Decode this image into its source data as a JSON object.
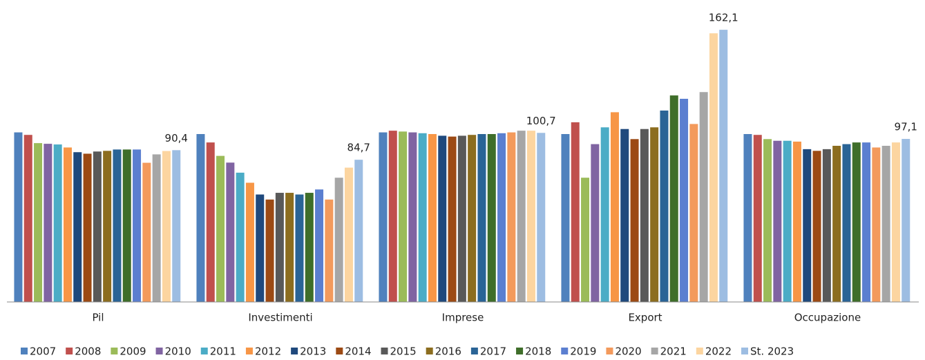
{
  "chart_data": {
    "type": "bar",
    "categories": [
      "Pil",
      "Investimenti",
      "Imprese",
      "Export",
      "Occupazione"
    ],
    "series": [
      {
        "name": "2007",
        "color": "#4f81bd",
        "values": [
          101,
          100,
          101,
          100,
          100
        ]
      },
      {
        "name": "2008",
        "color": "#c0504d",
        "values": [
          99.5,
          95,
          102,
          107,
          99.5
        ]
      },
      {
        "name": "2009",
        "color": "#9bbb59",
        "values": [
          94.6,
          87,
          101.5,
          74,
          97
        ]
      },
      {
        "name": "2010",
        "color": "#8064a2",
        "values": [
          94.2,
          83,
          101,
          94,
          96
        ]
      },
      {
        "name": "2011",
        "color": "#4bacc6",
        "values": [
          93.8,
          77,
          100.5,
          104,
          96
        ]
      },
      {
        "name": "2012",
        "color": "#f79646",
        "values": [
          92,
          71,
          100,
          113,
          95.5
        ]
      },
      {
        "name": "2013",
        "color": "#1f497d",
        "values": [
          89.2,
          64,
          99,
          103,
          91
        ]
      },
      {
        "name": "2014",
        "color": "#9c4a14",
        "values": [
          88.3,
          61,
          98.5,
          97,
          90
        ]
      },
      {
        "name": "2015",
        "color": "#595959",
        "values": [
          89.6,
          65,
          99,
          103,
          91
        ]
      },
      {
        "name": "2016",
        "color": "#8c6d1f",
        "values": [
          90,
          65,
          99.5,
          104,
          93
        ]
      },
      {
        "name": "2017",
        "color": "#2a6496",
        "values": [
          90.8,
          64,
          100,
          114,
          94
        ]
      },
      {
        "name": "2018",
        "color": "#3f6e2a",
        "values": [
          90.8,
          65,
          100,
          123,
          95
        ]
      },
      {
        "name": "2019",
        "color": "#5b7fd0",
        "values": [
          90.8,
          67,
          100.5,
          121,
          95
        ]
      },
      {
        "name": "2020",
        "color": "#f39a5c",
        "values": [
          82.9,
          61,
          101,
          106,
          92
        ]
      },
      {
        "name": "2021",
        "color": "#a6a6a6",
        "values": [
          87.9,
          74,
          102,
          125,
          93
        ]
      },
      {
        "name": "2022",
        "color": "#fcd5a0",
        "values": [
          89.9,
          80,
          102,
          160,
          95
        ]
      },
      {
        "name": "St. 2023",
        "color": "#9dbde2",
        "values": [
          90.4,
          84.7,
          100.7,
          162.1,
          97.1
        ],
        "value_labels": [
          "90,4",
          "84,7",
          "100,7",
          "162,1",
          "97,1"
        ]
      }
    ],
    "legend": "bottom"
  }
}
